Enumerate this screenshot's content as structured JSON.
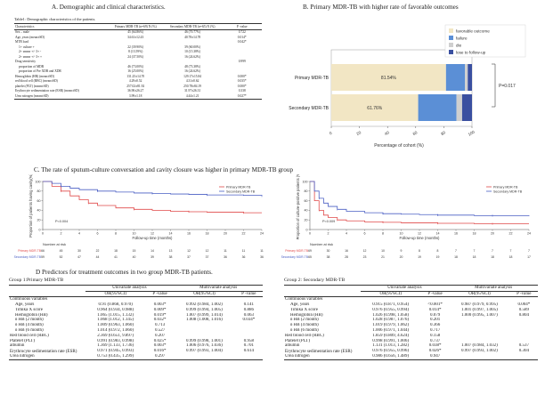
{
  "panel_titles": {
    "A": "A. Demographic and clinical characteristics.",
    "B": "B. Primary MDR-TB with higher rate of favorable outcomes",
    "C": "C. The rate of sputum-culture conversation and cavity closure was higher in primary MDR-TB group",
    "D": "D     Predictors for treatment outcomes in two group MDR-TB patients."
  },
  "tableA": {
    "caption": "Table1: Demographic characteristics of the patients.",
    "headers": [
      "Characteristics",
      "Primary MDR-TB (n=69)\nN (%)",
      "Secondary MDR-TB (n=65)\nN (%)",
      "P -value"
    ],
    "rows": [
      {
        "label": "Sex – male",
        "a": "45 (64.86%)",
        "b": "46 (70.77%)",
        "p": "0.722",
        "indent": false
      },
      {
        "label": "Age, years (mean±SD)",
        "a": "34.61±12.43",
        "b": "40.78±14.78",
        "p": "0.014*",
        "indent": false
      },
      {
        "label": "MTB load",
        "a": "",
        "b": "",
        "p": "0.042*",
        "indent": false
      },
      {
        "label": "1+ culture +",
        "a": "22 (39.90%)",
        "b": "39 (60.00%)",
        "p": "",
        "indent": true
      },
      {
        "label": "2+ smear +/- 3+ -",
        "a": "8 (13.59%)",
        "b": "10 (15.38%)",
        "p": "",
        "indent": true
      },
      {
        "label": "2+ smear +/- 3+ +",
        "a": "24 (37.50%)",
        "b": "16 (24.62%)",
        "p": "",
        "indent": true
      },
      {
        "label": "Drug sensitivity",
        "a": "",
        "b": "",
        "p": "0.999",
        "indent": false
      },
      {
        "label": "proportion of MDR",
        "a": "46 (73.00%)",
        "b": "48 (73.38%)",
        "p": "",
        "indent": true
      },
      {
        "label": "proportion of Pre XDR and XDR",
        "a": "16 (25.00%)",
        "b": "16 (24.62%)",
        "p": "",
        "indent": true
      },
      {
        "label": "Hemoglobin (HB) (mean±SD)",
        "a": "131.25±14.70",
        "b": "129.17±15.84",
        "p": "0.000*",
        "indent": false
      },
      {
        "label": "red blood cell (RBC) (mean±SD)",
        "a": "4.29±0.52",
        "b": "4.31±0.62",
        "p": "0.035*",
        "indent": false
      },
      {
        "label": "platelet (PLT) (mean±SD)",
        "a": "257.02±81.92",
        "b": "250.78±84.19",
        "p": "0.000*",
        "indent": false
      },
      {
        "label": "Erythrocyte sedimentation rate (ESR) (mean±SD)",
        "a": "36.90±26.27",
        "b": "31.97±26.31",
        "p": "0.338",
        "indent": false
      },
      {
        "label": "Urea nitrogen (mean±SD)",
        "a": "3.99±1.18",
        "b": "4.44±1.21",
        "p": "0.027*",
        "indent": false
      }
    ]
  },
  "chartB": {
    "categories": [
      "Primary MDR-TB",
      "Secondary MDR-TB"
    ],
    "series": [
      {
        "name": "favorable outcome",
        "color": "#f2e6c4",
        "values": [
          81.54,
          61.76
        ]
      },
      {
        "name": "failure",
        "color": "#5b8fd6",
        "values": [
          13.46,
          27.24
        ]
      },
      {
        "name": "die",
        "color": "#cfcfcf",
        "values": [
          2.0,
          4.0
        ]
      },
      {
        "name": "lose to follow-up",
        "color": "#3a4fa0",
        "values": [
          3.0,
          7.0
        ]
      }
    ],
    "bar_labels": [
      "81.54%",
      "61.76%"
    ],
    "xlabel": "Percentage of cohort (%)",
    "xticks": [
      "0",
      "20",
      "40",
      "60",
      "80",
      "100"
    ],
    "xlim": [
      0,
      100
    ],
    "pvalue": "P=0.017",
    "legend_position": "top-right"
  },
  "chartC1": {
    "ylabel": "Proportion of patients having cavity(%)",
    "xlabel": "Follow-up time (months)",
    "risk_title": "Number at risk",
    "xlim": [
      0,
      24
    ],
    "ylim": [
      0,
      100
    ],
    "xticks": [
      "0",
      "2",
      "4",
      "6",
      "8",
      "10",
      "12",
      "14",
      "16",
      "18",
      "20",
      "22",
      "24"
    ],
    "yticks": [
      "0",
      "20",
      "40",
      "60",
      "80",
      "100"
    ],
    "series": [
      {
        "name": "Primary MDR-TB",
        "color": "#e04a4a",
        "x": [
          0,
          1,
          2,
          3,
          4,
          5,
          6,
          8,
          10,
          12,
          14,
          16,
          18,
          20,
          22,
          24
        ],
        "y": [
          100,
          90,
          80,
          70,
          62,
          55,
          50,
          45,
          42,
          40,
          38,
          37,
          36,
          36,
          35,
          35
        ]
      },
      {
        "name": "Secondary MDR-TB",
        "color": "#4a5fc4",
        "x": [
          0,
          1,
          2,
          3,
          4,
          6,
          8,
          10,
          12,
          14,
          16,
          18,
          20,
          22,
          24
        ],
        "y": [
          100,
          96,
          90,
          86,
          83,
          80,
          78,
          76,
          75,
          74,
          73,
          72,
          72,
          71,
          70
        ]
      }
    ],
    "risk_rows": [
      {
        "name": "Primary MDR-TB",
        "color": "#e04a4a",
        "values": [
          "66",
          "45",
          "30",
          "22",
          "18",
          "15",
          "14",
          "13",
          "12",
          "12",
          "11",
          "11",
          "11"
        ]
      },
      {
        "name": "Secondary MDR-TB",
        "color": "#4a5fc4",
        "values": [
          "59",
          "52",
          "47",
          "44",
          "41",
          "40",
          "39",
          "38",
          "37",
          "37",
          "36",
          "36",
          "36"
        ]
      }
    ],
    "pvalue": "P=0.004"
  },
  "chartC2": {
    "ylabel": "Proportion of culture-positive patients (%)",
    "xlabel": "Follow-up time (months)",
    "risk_title": "Number at risk",
    "xlim": [
      0,
      24
    ],
    "ylim": [
      0,
      100
    ],
    "xticks": [
      "0",
      "2",
      "4",
      "6",
      "8",
      "10",
      "12",
      "14",
      "16",
      "18",
      "20",
      "22",
      "24"
    ],
    "yticks": [
      "0",
      "20",
      "40",
      "60",
      "80",
      "100"
    ],
    "series": [
      {
        "name": "Primary MDR-TB",
        "color": "#e04a4a",
        "x": [
          0,
          0.5,
          1,
          1.5,
          2,
          3,
          4,
          6,
          8,
          10,
          12,
          14,
          16,
          18,
          20,
          22,
          24
        ],
        "y": [
          100,
          60,
          40,
          30,
          25,
          20,
          18,
          16,
          15,
          14,
          14,
          13,
          13,
          12,
          12,
          12,
          12
        ]
      },
      {
        "name": "Secondary MDR-TB",
        "color": "#4a5fc4",
        "x": [
          0,
          0.5,
          1,
          1.5,
          2,
          3,
          4,
          6,
          8,
          10,
          12,
          14,
          16,
          18,
          20,
          22,
          24
        ],
        "y": [
          100,
          80,
          65,
          55,
          48,
          42,
          38,
          35,
          33,
          32,
          31,
          30,
          30,
          29,
          29,
          29,
          28
        ]
      }
    ],
    "risk_rows": [
      {
        "name": "Primary MDR-TB",
        "color": "#e04a4a",
        "values": [
          "69",
          "30",
          "16",
          "12",
          "10",
          "9",
          "8",
          "8",
          "7",
          "7",
          "7",
          "7",
          "7"
        ]
      },
      {
        "name": "Secondary MDR-TB",
        "color": "#4a5fc4",
        "values": [
          "65",
          "38",
          "28",
          "23",
          "21",
          "20",
          "19",
          "19",
          "18",
          "18",
          "18",
          "18",
          "17"
        ]
      }
    ],
    "pvalue": "P=0.009"
  },
  "group1": {
    "title": "Group 1:Primary MDR-TB",
    "h_uni": "Univariate analysis",
    "h_multi": "Multivariate analysis",
    "h_or": "OR(95%CI)",
    "h_p": "P -value",
    "rows": [
      {
        "label": "Continuous variables",
        "uni": "",
        "up": "",
        "multi": "",
        "mp": "",
        "indent": false
      },
      {
        "label": "Age, years",
        "uni": "0.91 (0.868, 0.970)",
        "up": "0.003*",
        "multi": "0.992 (0.984, 1.002)",
        "mp": "0.141",
        "indent": true
      },
      {
        "label": "Timika X score",
        "uni": "0.964 (0.934, 0.988)",
        "up": "0.009*",
        "multi": "0.999 (0.994, 1.005)",
        "mp": "0.886",
        "indent": true
      },
      {
        "label": "Hemoglobin (HB)",
        "uni": "1.065 (1.015, 1.132)",
        "up": "0.019*",
        "multi": "1.007 (0.999, 1.014)",
        "mp": "0.063",
        "indent": true
      },
      {
        "label": "δ HB (2 month)",
        "uni": "1.068 (1.012, 1.145)",
        "up": "0.032*",
        "multi": "1.008 (1.008, 1.016)",
        "mp": "0.034*",
        "indent": true
      },
      {
        "label": "δ HB (4 month)",
        "uni": "1.009 (0.963, 1.060)",
        "up": "0.713",
        "multi": "",
        "mp": "",
        "indent": true
      },
      {
        "label": "δ HB (6 month)",
        "uni": "1.014 (0.972, 1.060)",
        "up": "0.527",
        "multi": "",
        "mp": "",
        "indent": true
      },
      {
        "label": "Red blood cell (RBC)",
        "uni": "2.369 (0.651, 9.897)",
        "up": "0.207",
        "multi": "",
        "mp": "",
        "indent": false
      },
      {
        "label": "Platelet (PLT)",
        "uni": "0.991 (0.983, 0.998)",
        "up": "0.025*",
        "multi": "0.999 (0.998, 1.001)",
        "mp": "0.958",
        "indent": false
      },
      {
        "label": "albumin",
        "uni": "1.369 (1.133, 1.736)",
        "up": "0.003*",
        "multi": "1.006 (0.976, 1.036)",
        "mp": "0.701",
        "indent": false
      },
      {
        "label": "Erythrocyte sedimentation rate (ESR)",
        "uni": "0.971 (0.945, 0.993)",
        "up": "0.016*",
        "multi": "0.997 (0.993, 1.004)",
        "mp": "0.614",
        "indent": false
      },
      {
        "label": "Urea nitrogen",
        "uni": "0.753 (0.435, 1.299)",
        "up": "0.297",
        "multi": "",
        "mp": "",
        "indent": false
      }
    ]
  },
  "group2": {
    "title": "Group 2: Secondary MDR-TB",
    "h_uni": "Univariate analysis",
    "h_multi": "Multivariate analysis",
    "h_or": "OR(95%CI)",
    "h_p": "P -value",
    "rows": [
      {
        "label": "Continuous variables",
        "uni": "",
        "up": "",
        "multi": "",
        "mp": "",
        "indent": false
      },
      {
        "label": "Age, years",
        "uni": "0.915 (0.871, 0.954)",
        "up": "<0.001*",
        "multi": "0.987 (0.979, 0.995)",
        "mp": "0.004*",
        "indent": true
      },
      {
        "label": "Timika X score",
        "uni": "0.976 (0.955, 0.994)",
        "up": "0.014*",
        "multi": "1.001 (0.997, 1.005)",
        "mp": "0.589",
        "indent": true
      },
      {
        "label": "Hemoglobin (HB)",
        "uni": "1.026 (0.998, 1.058)",
        "up": "0.079",
        "multi": "1.000 (0.995, 1.007)",
        "mp": "0.804",
        "indent": true
      },
      {
        "label": "δ HB (2 month)",
        "uni": "1.028 (0.987, 1.076)",
        "up": "0.201",
        "multi": "",
        "mp": "",
        "indent": true
      },
      {
        "label": "δ HB (4 month)",
        "uni": "1.019 (0.979, 1.062)",
        "up": "0.366",
        "multi": "",
        "mp": "",
        "indent": true
      },
      {
        "label": "δ HB (6 month)",
        "uni": "1.006 (0.971, 1.044)",
        "up": "0.717",
        "multi": "",
        "mp": "",
        "indent": true
      },
      {
        "label": "Red blood cell (RBC)",
        "uni": "1.859 (0.809, 4.624)",
        "up": "0.158",
        "multi": "",
        "mp": "",
        "indent": false
      },
      {
        "label": "Platelet (PLT)",
        "uni": "0.998 (0.991, 1.006)",
        "up": "0.737",
        "multi": "",
        "mp": "",
        "indent": false
      },
      {
        "label": "albumin",
        "uni": "1.131 (1.013, 1.282)",
        "up": "0.038*",
        "multi": "1.007 (0.984, 1.032)",
        "mp": "0.537",
        "indent": false
      },
      {
        "label": "Erythrocyte sedimentation rate (ESR)",
        "uni": "0.976 (0.955, 0.996)",
        "up": "0.026*",
        "multi": "0.997 (0.993, 1.002)",
        "mp": "0.304",
        "indent": false
      },
      {
        "label": "Urea nitrogen",
        "uni": "0.986 (0.656, 1.489)",
        "up": "0.947",
        "multi": "",
        "mp": "",
        "indent": false
      }
    ]
  }
}
